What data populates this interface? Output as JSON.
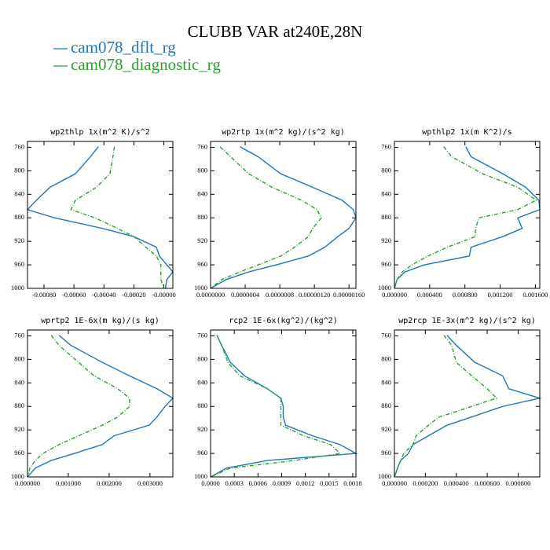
{
  "title": "CLUBB VAR at240E,28N",
  "chart_data": [
    {
      "type": "line",
      "title": "wp2thlp  1x(m^2 K)/s^2",
      "y": [
        759,
        776,
        805,
        828,
        850,
        866,
        880,
        898,
        912,
        930,
        945,
        960,
        972,
        985,
        1000
      ],
      "ylim": [
        1000,
        750
      ],
      "yticks": [
        760,
        800,
        840,
        880,
        920,
        960,
        1000
      ],
      "xlim": [
        -0.00091,
        6e-05
      ],
      "xticks": [
        {
          "value": -0.0008,
          "label": "-0.00080"
        },
        {
          "value": -0.0006,
          "label": "-0.00060"
        },
        {
          "value": -0.0004,
          "label": "-0.00040"
        },
        {
          "value": -0.0002,
          "label": "-0.00020"
        },
        {
          "value": 0,
          "label": "-0.00000"
        }
      ],
      "series": [
        {
          "name": "cam078_dflt_rg",
          "color": "#1f77b4",
          "values": [
            -0.000437,
            -0.00049,
            -0.00059,
            -0.00076,
            -0.00085,
            -0.00091,
            -0.00073,
            -0.00041,
            -0.0002,
            -5e-05,
            -3e-05,
            2e-05,
            6e-05,
            2e-05,
            1e-05
          ]
        },
        {
          "name": "cam078_diagnostic_rg",
          "color": "#2ca02c",
          "values": [
            -0.00033,
            -0.00034,
            -0.00036,
            -0.00045,
            -0.00059,
            -0.00062,
            -0.00046,
            -0.00031,
            -0.0002,
            -0.00012,
            -5e-05,
            -2e-05,
            -2e-05,
            -2e-05,
            0
          ]
        }
      ]
    },
    {
      "type": "line",
      "title": "wp2rtp  1x(m^2 kg)/(s^2 kg)",
      "y": [
        759,
        776,
        805,
        828,
        850,
        866,
        880,
        898,
        912,
        930,
        945,
        960,
        972,
        985,
        1000
      ],
      "ylim": [
        1000,
        750
      ],
      "yticks": [
        760,
        800,
        840,
        880,
        920,
        960,
        1000
      ],
      "xlim": [
        0,
        1.68e-06
      ],
      "xticks": [
        {
          "value": 0,
          "label": "0.0000000"
        },
        {
          "value": 4e-07,
          "label": "0.0000004"
        },
        {
          "value": 8e-07,
          "label": "0.0000008"
        },
        {
          "value": 1.2e-06,
          "label": "0.00000120"
        },
        {
          "value": 1.6e-06,
          "label": "0.00000160"
        }
      ],
      "series": [
        {
          "name": "cam078_dflt_rg",
          "color": "#1f77b4",
          "values": [
            3.4e-07,
            5.5e-07,
            8.1e-07,
            1.18e-06,
            1.52e-06,
            1.65e-06,
            1.68e-06,
            1.6e-06,
            1.47e-06,
            1.32e-06,
            1.13e-06,
            7.6e-07,
            4.4e-07,
            1.8e-07,
            0
          ]
        },
        {
          "name": "cam078_diagnostic_rg",
          "color": "#2ca02c",
          "values": [
            1.1e-07,
            2.3e-07,
            4.4e-07,
            7.1e-07,
            1.05e-06,
            1.23e-06,
            1.28e-06,
            1.18e-06,
            1.13e-06,
            9.7e-07,
            8.1e-07,
            5.5e-07,
            3.4e-07,
            1.3e-07,
            0
          ]
        }
      ]
    },
    {
      "type": "line",
      "title": "wpthlp2  1x(m K^2)/s",
      "y": [
        759,
        776,
        805,
        828,
        850,
        866,
        880,
        898,
        912,
        930,
        945,
        960,
        972,
        985,
        1000
      ],
      "ylim": [
        1000,
        750
      ],
      "yticks": [
        760,
        800,
        840,
        880,
        920,
        960,
        1000
      ],
      "xlim": [
        0,
        0.00165
      ],
      "xticks": [
        {
          "value": 0,
          "label": "0.000000"
        },
        {
          "value": 0.0004,
          "label": "0.000400"
        },
        {
          "value": 0.0008,
          "label": "0.000800"
        },
        {
          "value": 0.0012,
          "label": "0.001200"
        },
        {
          "value": 0.0016,
          "label": "0.001600"
        }
      ],
      "series": [
        {
          "name": "cam078_dflt_rg",
          "color": "#1f77b4",
          "values": [
            0.00081,
            0.00087,
            0.00123,
            0.00149,
            0.00164,
            0.00165,
            0.0014,
            0.00145,
            0.00123,
            0.00087,
            0.00085,
            0.00034,
            0.00012,
            3e-05,
            0
          ]
        },
        {
          "name": "cam078_diagnostic_rg",
          "color": "#2ca02c",
          "values": [
            0.00056,
            0.00065,
            0.001,
            0.0014,
            0.00161,
            0.0014,
            0.00096,
            0.00092,
            0.00092,
            0.0006,
            0.00038,
            0.0002,
            9e-05,
            3e-05,
            0
          ]
        }
      ]
    },
    {
      "type": "line",
      "title": "wprtp2  1E-6x(m kg)/(s kg)",
      "y": [
        759,
        776,
        805,
        828,
        850,
        866,
        880,
        898,
        912,
        930,
        945,
        960,
        972,
        985,
        1000
      ],
      "ylim": [
        1000,
        750
      ],
      "yticks": [
        760,
        800,
        840,
        880,
        920,
        960,
        1000
      ],
      "xlim": [
        0,
        0.00356
      ],
      "xticks": [
        {
          "value": 0,
          "label": "0.000000"
        },
        {
          "value": 0.001,
          "label": "0.001000"
        },
        {
          "value": 0.002,
          "label": "0.002000"
        },
        {
          "value": 0.003,
          "label": "0.003000"
        }
      ],
      "series": [
        {
          "name": "cam078_dflt_rg",
          "color": "#1f77b4",
          "values": [
            0.00077,
            0.00106,
            0.00183,
            0.0025,
            0.00317,
            0.00356,
            0.00337,
            0.00317,
            0.00298,
            0.00212,
            0.00183,
            0.00115,
            0.00058,
            0.00019,
            0
          ]
        },
        {
          "name": "cam078_diagnostic_rg",
          "color": "#2ca02c",
          "values": [
            0.00058,
            0.00077,
            0.00125,
            0.00163,
            0.00221,
            0.0025,
            0.0025,
            0.00221,
            0.00183,
            0.00125,
            0.00077,
            0.00038,
            0.00019,
            6e-05,
            0
          ]
        }
      ]
    },
    {
      "type": "line",
      "title": "rcp2  1E-6x(kg^2)/(kg^2)",
      "y": [
        759,
        776,
        805,
        828,
        850,
        866,
        880,
        898,
        912,
        930,
        945,
        960,
        972,
        985,
        1000
      ],
      "ylim": [
        1000,
        750
      ],
      "yticks": [
        760,
        800,
        840,
        880,
        920,
        960,
        1000
      ],
      "xlim": [
        0,
        0.00184
      ],
      "xticks": [
        {
          "value": 0,
          "label": "0.0000"
        },
        0.0003,
        0.0006,
        0.0009,
        0.0012,
        0.0015,
        0.0018
      ],
      "series": [
        {
          "name": "cam078_dflt_rg",
          "color": "#1f77b4",
          "values": [
            8e-05,
            0.00014,
            0.00025,
            0.00043,
            0.00072,
            0.00089,
            0.00092,
            0.00092,
            0.00095,
            0.00129,
            0.00164,
            0.00184,
            0.00072,
            0.0002,
            0
          ]
        },
        {
          "name": "cam078_diagnostic_rg",
          "color": "#2ca02c",
          "values": [
            8e-05,
            0.00014,
            0.00022,
            0.00037,
            0.00072,
            0.00089,
            0.00089,
            0.00089,
            0.00089,
            0.00118,
            0.00152,
            0.00164,
            0.00106,
            0.00025,
            0
          ]
        }
      ]
    },
    {
      "type": "line",
      "title": "wp2rcp  1E-3x(m^2 kg)/(s^2 kg)",
      "y": [
        759,
        776,
        805,
        828,
        850,
        866,
        880,
        898,
        912,
        930,
        945,
        960,
        972,
        985,
        1000
      ],
      "ylim": [
        1000,
        750
      ],
      "yticks": [
        760,
        800,
        840,
        880,
        920,
        960,
        1000
      ],
      "xlim": [
        0,
        0.00094
      ],
      "xticks": [
        {
          "value": 0,
          "label": "0.000000"
        },
        {
          "value": 0.0002,
          "label": "0.000200"
        },
        {
          "value": 0.0004,
          "label": "0.000400"
        },
        {
          "value": 0.0006,
          "label": "0.000600"
        },
        {
          "value": 0.0008,
          "label": "0.000800"
        }
      ],
      "series": [
        {
          "name": "cam078_dflt_rg",
          "color": "#1f77b4",
          "values": [
            0.00034,
            0.0004,
            0.00052,
            0.0007,
            0.00074,
            0.00094,
            0.0007,
            0.0005,
            0.00034,
            0.00022,
            0.00012,
            9e-05,
            4e-05,
            2e-05,
            0
          ]
        },
        {
          "name": "cam078_diagnostic_rg",
          "color": "#2ca02c",
          "values": [
            0.00032,
            0.00037,
            0.0004,
            0.0005,
            0.0006,
            0.00066,
            0.0005,
            0.00029,
            0.00022,
            0.00014,
            0.00012,
            6e-05,
            4e-05,
            2e-05,
            0
          ]
        }
      ]
    }
  ]
}
